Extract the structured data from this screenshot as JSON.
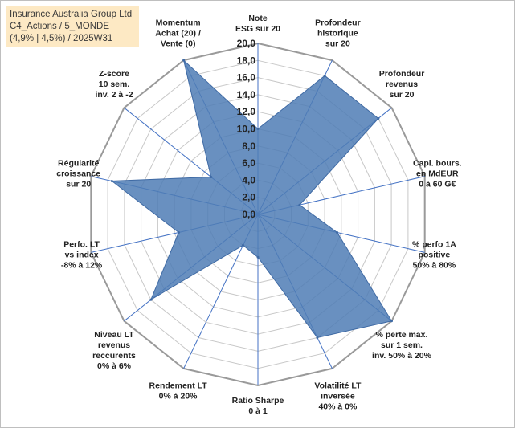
{
  "header": {
    "line1": "Insurance Australia Group Ltd",
    "line2": "C4_Actions / 5_MONDE",
    "line3": "(4,9% | 4,5%) / 2025W31"
  },
  "chart_data": {
    "type": "radar",
    "title": "",
    "rlim": [
      0,
      20
    ],
    "ticks": [
      "0,0",
      "2,0",
      "4,0",
      "6,0",
      "8,0",
      "10,0",
      "12,0",
      "14,0",
      "16,0",
      "18,0",
      "20,0"
    ],
    "grid": true,
    "categories": [
      [
        "Note",
        "ESG sur 20"
      ],
      [
        "Profondeur",
        "historique",
        "sur 20"
      ],
      [
        "Profondeur",
        "revenus",
        "sur 20"
      ],
      [
        "Capi. bours.",
        "en MdEUR",
        "0 à 60 G€"
      ],
      [
        "% perfo 1A",
        "positive",
        "50% à 80%"
      ],
      [
        "% perte max.",
        "sur 1 sem.",
        "inv. 50% à 20%"
      ],
      [
        "Volatilité LT",
        "inversée",
        "40% à 0%"
      ],
      [
        "Ratio Sharpe",
        "0 à 1"
      ],
      [
        "Rendement LT",
        "0% à 20%"
      ],
      [
        "Niveau LT",
        "revenus",
        "reccurents",
        "0% à 6%"
      ],
      [
        "Perfo. LT",
        "vs index",
        "-8% à 12%"
      ],
      [
        "Régularité",
        "croissance",
        "sur 20"
      ],
      [
        "Z-score",
        "10 sem.",
        "inv. 2 à -2"
      ],
      [
        "Momentum",
        "Achat (20) /",
        "Vente (0)"
      ]
    ],
    "values": [
      10,
      18,
      18,
      5,
      9.5,
      20,
      16,
      5,
      4,
      16,
      9.5,
      17.5,
      7,
      20
    ],
    "colors": {
      "fill": "#4f7cb5",
      "stroke": "#3f6aa4",
      "grid": "#c8c8c8",
      "spoke": "#4472c4"
    }
  }
}
